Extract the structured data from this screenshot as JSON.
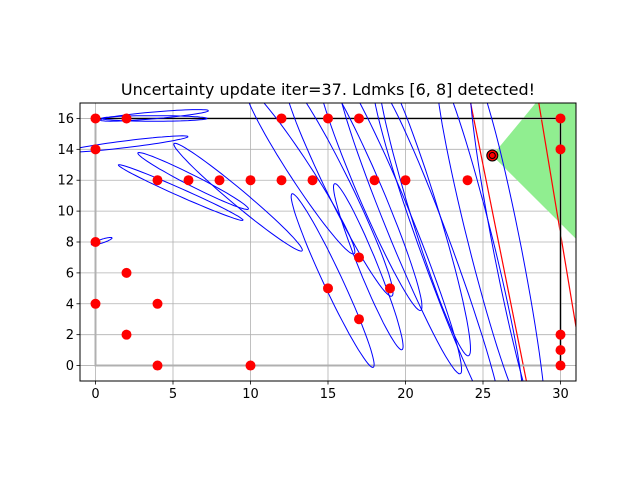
{
  "chart_data": {
    "type": "scatter",
    "title": "Uncertainty update iter=37. Ldmks [6, 8] detected!",
    "xlabel": "",
    "ylabel": "",
    "xlim": [
      -1,
      31
    ],
    "ylim": [
      -1,
      17
    ],
    "xticks": [
      0,
      5,
      10,
      15,
      20,
      25,
      30
    ],
    "yticks": [
      0,
      2,
      4,
      6,
      8,
      10,
      12,
      14,
      16
    ],
    "grid": true,
    "landmark_color": "#ff0000",
    "ellipse_color": "#0000ff",
    "fov_fill_color": "#90ee90",
    "boundary_color": "#000000",
    "landmarks": [
      [
        0,
        16
      ],
      [
        2,
        16
      ],
      [
        12,
        16
      ],
      [
        15,
        16
      ],
      [
        17,
        16
      ],
      [
        30,
        16
      ],
      [
        0,
        14
      ],
      [
        30,
        14
      ],
      [
        4,
        12
      ],
      [
        6,
        12
      ],
      [
        8,
        12
      ],
      [
        10,
        12
      ],
      [
        12,
        12
      ],
      [
        14,
        12
      ],
      [
        18,
        12
      ],
      [
        20,
        12
      ],
      [
        24,
        12
      ],
      [
        0,
        8
      ],
      [
        2,
        6
      ],
      [
        17,
        7
      ],
      [
        0,
        4
      ],
      [
        4,
        4
      ],
      [
        15,
        5
      ],
      [
        19,
        5
      ],
      [
        17,
        3
      ],
      [
        2,
        2
      ],
      [
        4,
        0
      ],
      [
        10,
        0
      ],
      [
        30,
        2
      ],
      [
        30,
        1
      ],
      [
        30,
        0
      ]
    ],
    "robot": {
      "x": 25.6,
      "y": 13.6
    },
    "fov_polygon": [
      [
        25.6,
        13.6
      ],
      [
        28.4,
        17
      ],
      [
        31,
        17
      ],
      [
        31,
        8.2
      ]
    ],
    "fov_edges": [
      [
        [
          24.2,
          17
        ],
        [
          27.8,
          -1
        ]
      ],
      [
        [
          28.6,
          17
        ],
        [
          31,
          2.5
        ]
      ]
    ],
    "path": [
      [
        0,
        16
      ],
      [
        30,
        16
      ],
      [
        30,
        0
      ],
      [
        0,
        0
      ],
      [
        0,
        16
      ]
    ],
    "uncertainty_ellipses": [
      {
        "cx": 3.8,
        "cy": 16.2,
        "rx": 3.5,
        "ry": 0.22,
        "angle": 5
      },
      {
        "cx": 3.8,
        "cy": 16,
        "rx": 3.4,
        "ry": 0.18,
        "angle": 0
      },
      {
        "cx": 2.1,
        "cy": 14.35,
        "rx": 3.9,
        "ry": 0.22,
        "angle": 7
      },
      {
        "cx": 0.4,
        "cy": 8.05,
        "rx": 0.7,
        "ry": 0.12,
        "angle": 18
      },
      {
        "cx": 5.5,
        "cy": 11.2,
        "rx": 4.4,
        "ry": 0.25,
        "angle": -24
      },
      {
        "cx": 6.3,
        "cy": 11.95,
        "rx": 4.0,
        "ry": 0.35,
        "angle": -27
      },
      {
        "cx": 9.2,
        "cy": 10.9,
        "rx": 5.4,
        "ry": 0.5,
        "angle": -40
      },
      {
        "cx": 13.2,
        "cy": 12.6,
        "rx": 6.4,
        "ry": 0.7,
        "angle": -57
      },
      {
        "cx": 15.7,
        "cy": 11.5,
        "rx": 7.8,
        "ry": 0.8,
        "angle": -64
      },
      {
        "cx": 17.7,
        "cy": 11.3,
        "rx": 8.4,
        "ry": 0.8,
        "angle": -67
      },
      {
        "cx": 19.6,
        "cy": 9.2,
        "rx": 10.5,
        "ry": 0.9,
        "angle": -68
      },
      {
        "cx": 21.2,
        "cy": 10.0,
        "rx": 9.8,
        "ry": 0.9,
        "angle": -73
      },
      {
        "cx": 22.1,
        "cy": 7.2,
        "rx": 12.0,
        "ry": 1.0,
        "angle": -70
      },
      {
        "cx": 24.8,
        "cy": 8.2,
        "rx": 11.0,
        "ry": 0.8,
        "angle": -76
      },
      {
        "cx": 26.6,
        "cy": 7.4,
        "rx": 12.0,
        "ry": 0.9,
        "angle": -79
      },
      {
        "cx": 15.3,
        "cy": 5.5,
        "rx": 6.2,
        "ry": 0.6,
        "angle": -65
      },
      {
        "cx": 17.6,
        "cy": 6.4,
        "rx": 5.8,
        "ry": 0.6,
        "angle": -68
      }
    ]
  }
}
